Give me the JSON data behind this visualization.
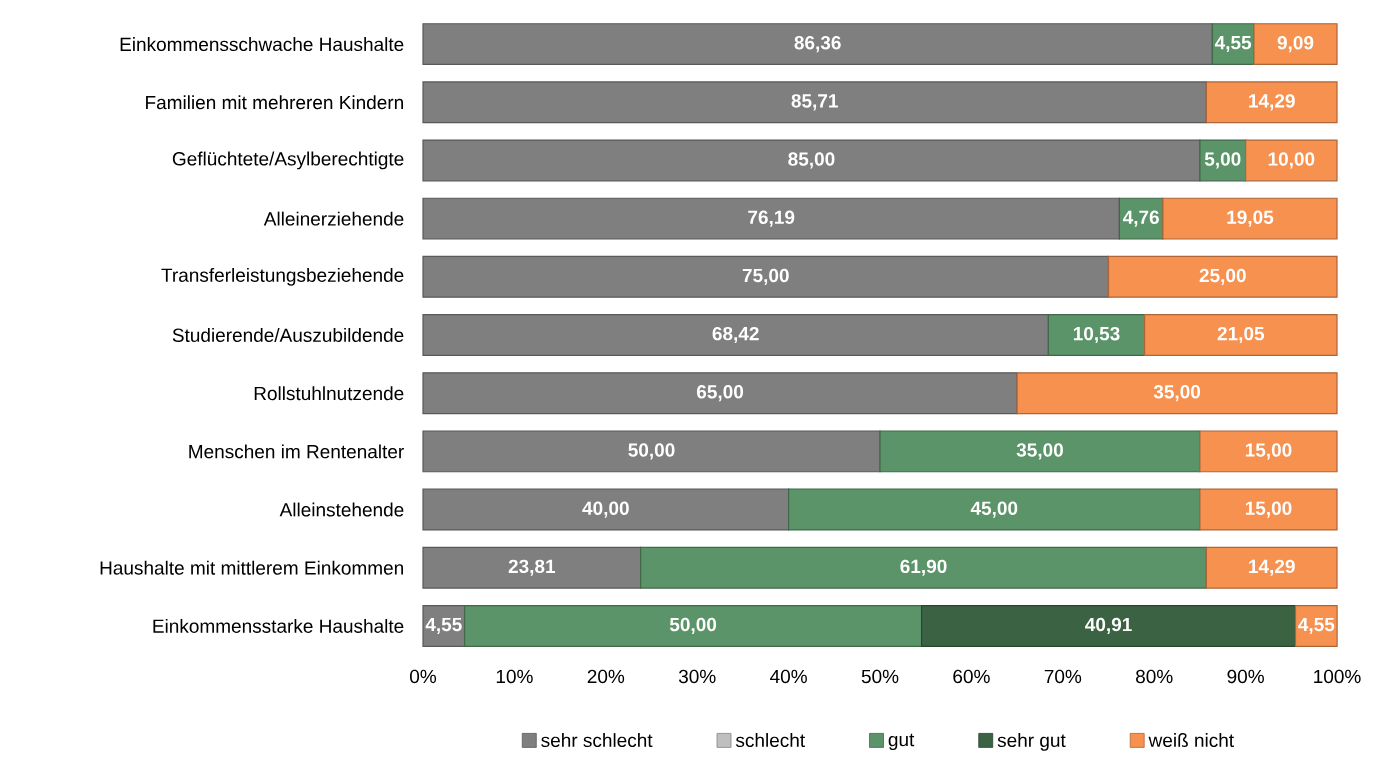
{
  "chart_data": {
    "type": "bar",
    "orientation": "horizontal",
    "stacked": true,
    "categories": [
      "Einkommensschwache Haushalte",
      "Familien mit mehreren Kindern",
      "Geflüchtete/Asylberechtigte",
      "Alleinerziehende",
      "Transferleistungsbeziehende",
      "Studierende/Auszubildende",
      "Rollstuhlnutzende",
      "Menschen im Rentenalter",
      "Alleinstehende",
      "Haushalte mit mittlerem Einkommen",
      "Einkommensstarke Haushalte"
    ],
    "series": [
      {
        "name": "sehr schlecht",
        "color": "#7f7f7f",
        "values": [
          86.36,
          85.71,
          85.0,
          76.19,
          75.0,
          68.42,
          65.0,
          50.0,
          40.0,
          23.81,
          4.55
        ],
        "value_labels": [
          "86,36",
          "85,71",
          "85,00",
          "76,19",
          "75,00",
          "68,42",
          "65,00",
          "50,00",
          "40,00",
          "23,81",
          "4,55"
        ]
      },
      {
        "name": "schlecht",
        "color": "#bfbfbf",
        "values": [
          null,
          null,
          null,
          null,
          null,
          null,
          null,
          null,
          null,
          null,
          null
        ]
      },
      {
        "name": "gut",
        "color": "#5b9468",
        "values": [
          4.55,
          null,
          5.0,
          4.76,
          null,
          10.53,
          null,
          35.0,
          45.0,
          61.9,
          50.0
        ],
        "value_labels": [
          "4,55",
          null,
          "5,00",
          "4,76",
          null,
          "10,53",
          null,
          "35,00",
          "45,00",
          "61,90",
          "50,00"
        ]
      },
      {
        "name": "sehr gut",
        "color": "#3b6243",
        "values": [
          null,
          null,
          null,
          null,
          null,
          null,
          null,
          null,
          null,
          null,
          40.91
        ],
        "value_labels": [
          null,
          null,
          null,
          null,
          null,
          null,
          null,
          null,
          null,
          null,
          "40,91"
        ]
      },
      {
        "name": "weiß nicht",
        "color": "#f79150",
        "values": [
          9.09,
          14.29,
          10.0,
          19.05,
          25.0,
          21.05,
          35.0,
          15.0,
          15.0,
          14.29,
          4.55
        ],
        "value_labels": [
          "9,09",
          "14,29",
          "10,00",
          "19,05",
          "25,00",
          "21,05",
          "35,00",
          "15,00",
          "15,00",
          "14,29",
          "4,55"
        ]
      }
    ],
    "xlim": [
      0,
      100
    ],
    "xticks": [
      {
        "value": 0,
        "label": "0%"
      },
      {
        "value": 10,
        "label": "10%"
      },
      {
        "value": 20,
        "label": "20%"
      },
      {
        "value": 30,
        "label": "30%"
      },
      {
        "value": 40,
        "label": "40%"
      },
      {
        "value": 50,
        "label": "50%"
      },
      {
        "value": 60,
        "label": "60%"
      },
      {
        "value": 70,
        "label": "70%"
      },
      {
        "value": 80,
        "label": "80%"
      },
      {
        "value": 90,
        "label": "90%"
      },
      {
        "value": 100,
        "label": "100%"
      }
    ],
    "legend": "bottom"
  }
}
